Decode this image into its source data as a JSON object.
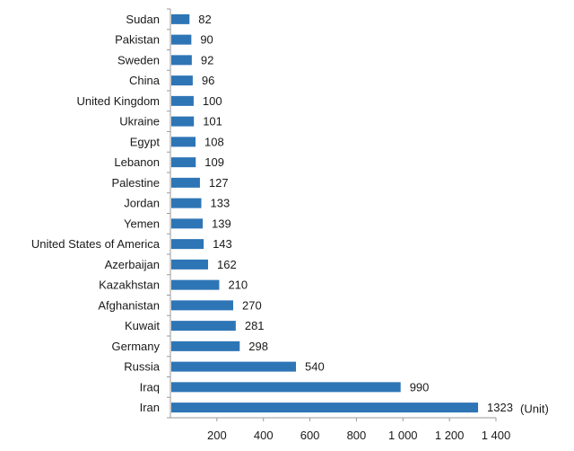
{
  "chart_data": {
    "type": "bar",
    "orientation": "horizontal",
    "categories": [
      "Sudan",
      "Pakistan",
      "Sweden",
      "China",
      "United Kingdom",
      "Ukraine",
      "Egypt",
      "Lebanon",
      "Palestine",
      "Jordan",
      "Yemen",
      "United States of America",
      "Azerbaijan",
      "Kazakhstan",
      "Afghanistan",
      "Kuwait",
      "Germany",
      "Russia",
      "Iraq",
      "Iran"
    ],
    "values": [
      82,
      90,
      92,
      96,
      100,
      101,
      108,
      109,
      127,
      133,
      139,
      143,
      162,
      210,
      270,
      281,
      298,
      540,
      990,
      1323
    ],
    "value_labels": [
      "82",
      "90",
      "92",
      "96",
      "100",
      "101",
      "108",
      "109",
      "127",
      "133",
      "139",
      "143",
      "162",
      "210",
      "270",
      "281",
      "298",
      "540",
      "990",
      "1323"
    ],
    "xlim": [
      0,
      1400
    ],
    "x_ticks": [
      200,
      400,
      600,
      800,
      1000,
      1200,
      1400
    ],
    "x_tick_labels": [
      "200",
      "400",
      "600",
      "800",
      "1 000",
      "1 200",
      "1 400"
    ],
    "unit_label": "(Unit)",
    "bar_color": "#2e75b6",
    "grid": false
  }
}
